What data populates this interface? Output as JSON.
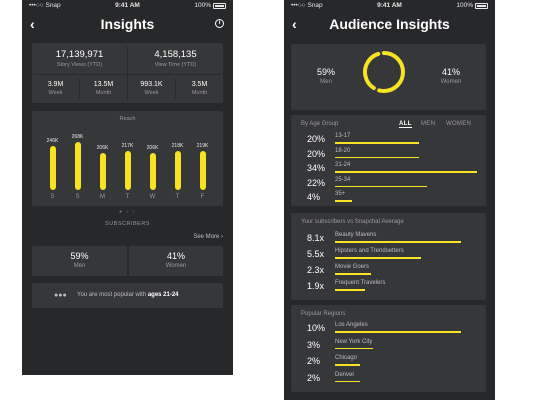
{
  "status_bar": {
    "carrier": "•••○○ Snap",
    "wifi_icon": "wifi-icon",
    "time": "9:41 AM",
    "battery": "100%"
  },
  "left": {
    "title": "Insights",
    "back_icon": "chevron-left-icon",
    "info_icon": "info-icon",
    "story_views": {
      "value": "17,139,971",
      "label": "Story Views (YTD)"
    },
    "view_time": {
      "value": "4,158,135",
      "label": "View Time (YTD)"
    },
    "small_stats": [
      {
        "value": "3.9M",
        "label": "Week"
      },
      {
        "value": "13.5M",
        "label": "Month"
      },
      {
        "value": "993.1K",
        "label": "Week"
      },
      {
        "value": "3.5M",
        "label": "Month"
      }
    ],
    "reach_title": "Reach",
    "pager_dots": "● ○ ○",
    "subscribers_label": "SUBSCRIBERS",
    "see_more": "See More ›",
    "men": {
      "value": "59%",
      "label": "Men"
    },
    "women": {
      "value": "41%",
      "label": "Women"
    },
    "popular_icon": "people-icon",
    "popular_prefix": "You are most popular with",
    "popular_ages": "ages 21-24"
  },
  "chart_data": {
    "type": "bar",
    "title": "Reach",
    "categories": [
      "S",
      "S",
      "M",
      "T",
      "W",
      "T",
      "F"
    ],
    "values": [
      246,
      268,
      206,
      217,
      206,
      218,
      219
    ],
    "value_labels": [
      "246K",
      "268K",
      "206K",
      "217K",
      "206K",
      "218K",
      "219K"
    ],
    "ylim": [
      0,
      300
    ],
    "color": "#f7e324"
  },
  "right": {
    "title": "Audience Insights",
    "back_icon": "chevron-left-icon",
    "gender": {
      "men": {
        "value": "59%",
        "label": "Men",
        "fraction": 0.59
      },
      "women": {
        "value": "41%",
        "label": "Women",
        "fraction": 0.41
      }
    },
    "age_group": {
      "heading": "By Age Group",
      "filters": [
        "ALL",
        "MEN",
        "WOMEN"
      ],
      "active_filter": "ALL",
      "rows": [
        {
          "pct": "20%",
          "label": "13-17",
          "value": 0.2
        },
        {
          "pct": "20%",
          "label": "18-20",
          "value": 0.2
        },
        {
          "pct": "34%",
          "label": "21-24",
          "value": 0.34
        },
        {
          "pct": "22%",
          "label": "25-34",
          "value": 0.22
        },
        {
          "pct": "4%",
          "label": "35+",
          "value": 0.04
        }
      ]
    },
    "vs_average": {
      "heading": "Your subscribers vs Snapchat Average",
      "rows": [
        {
          "pct": "8.1x",
          "label": "Beauty Mavens",
          "value": 8.1
        },
        {
          "pct": "5.5x",
          "label": "Hipsters and Trendsetters",
          "value": 5.5
        },
        {
          "pct": "2.3x",
          "label": "Movie Goers",
          "value": 2.3
        },
        {
          "pct": "1.9x",
          "label": "Frequent Travelers",
          "value": 1.9
        }
      ]
    },
    "regions": {
      "heading": "Popular Regions",
      "rows": [
        {
          "pct": "10%",
          "label": "Los Angeles",
          "value": 10
        },
        {
          "pct": "3%",
          "label": "New York City",
          "value": 3
        },
        {
          "pct": "2%",
          "label": "Chicago",
          "value": 2
        },
        {
          "pct": "2%",
          "label": "Denver",
          "value": 2
        }
      ]
    }
  }
}
